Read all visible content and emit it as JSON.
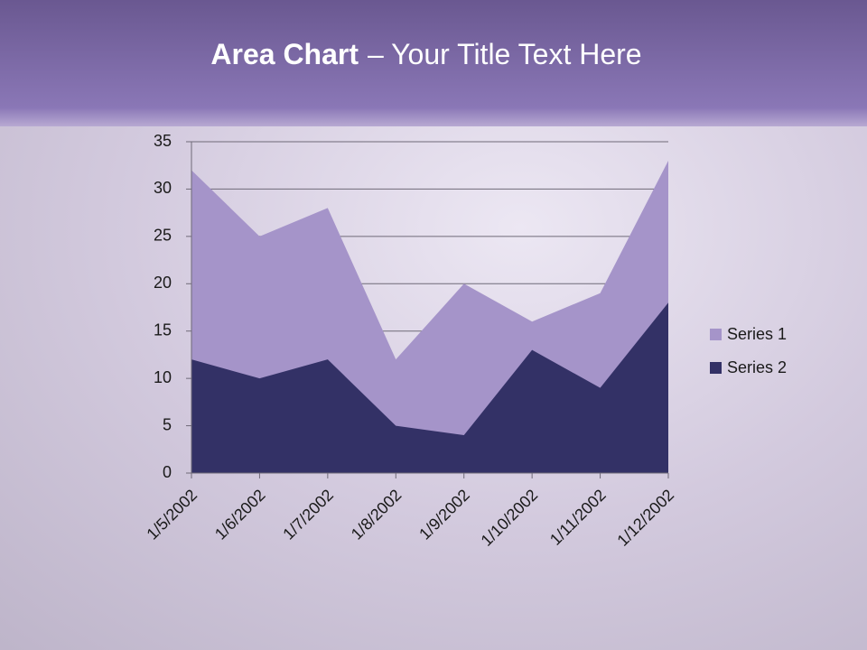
{
  "chart_data": {
    "type": "area",
    "title": [
      "Area Chart",
      "– Your Title Text Here"
    ],
    "categories": [
      "1/5/2002",
      "1/6/2002",
      "1/7/2002",
      "1/8/2002",
      "1/9/2002",
      "1/10/2002",
      "1/11/2002",
      "1/12/2002"
    ],
    "series": [
      {
        "name": "Series 1",
        "color": "#a594c9",
        "values": [
          32,
          25,
          28,
          12,
          20,
          16,
          19,
          33
        ]
      },
      {
        "name": "Series 2",
        "color": "#333166",
        "values": [
          12,
          10,
          12,
          5,
          4,
          13,
          9,
          18
        ]
      }
    ],
    "ylim": [
      0,
      35
    ],
    "yticks": [
      0,
      5,
      10,
      15,
      20,
      25,
      30,
      35
    ],
    "grid": true,
    "legend": "right"
  }
}
